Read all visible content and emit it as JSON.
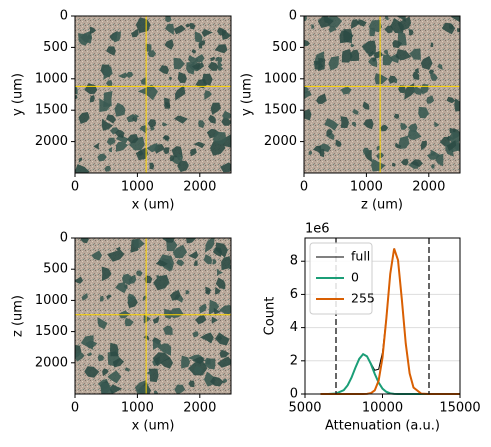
{
  "chart_data": [
    {
      "type": "image",
      "xlabel": "x (um)",
      "ylabel": "y (um)",
      "xlim": [
        0,
        2500
      ],
      "ylim": [
        2500,
        0
      ],
      "xticks": [
        0,
        1000,
        2000
      ],
      "yticks": [
        0,
        500,
        1000,
        1500,
        2000
      ],
      "crosshair": {
        "x": 1140,
        "y": 1120
      },
      "crosshair_color": "#ffd700"
    },
    {
      "type": "image",
      "xlabel": "z (um)",
      "ylabel": "y (um)",
      "xlim": [
        0,
        2500
      ],
      "ylim": [
        2500,
        0
      ],
      "xticks": [
        0,
        1000,
        2000
      ],
      "yticks": [
        0,
        500,
        1000,
        1500,
        2000
      ],
      "crosshair": {
        "x": 1220,
        "y": 1120
      },
      "crosshair_color": "#ffd700"
    },
    {
      "type": "image",
      "xlabel": "x (um)",
      "ylabel": "z (um)",
      "xlim": [
        0,
        2500
      ],
      "ylim": [
        2500,
        0
      ],
      "xticks": [
        0,
        1000,
        2000
      ],
      "yticks": [
        0,
        500,
        1000,
        1500,
        2000
      ],
      "crosshair": {
        "x": 1140,
        "y": 1230
      },
      "crosshair_color": "#ffd700"
    },
    {
      "type": "line",
      "xlabel": "Attenuation (a.u.)",
      "ylabel": "Count",
      "y_scale_label": "1e6",
      "x": [
        6000,
        6500,
        7000,
        7500,
        7750,
        8000,
        8250,
        8500,
        8750,
        9000,
        9250,
        9500,
        9750,
        10000,
        10250,
        10500,
        10750,
        11000,
        11250,
        11500,
        11750,
        12000,
        12500,
        13000,
        14000,
        15000
      ],
      "series": [
        {
          "name": "full",
          "color": "#000000",
          "width": 1,
          "values": [
            0,
            0,
            0.03,
            0.23,
            0.52,
            0.99,
            1.58,
            2.12,
            2.4,
            2.28,
            1.86,
            1.43,
            1.49,
            2.51,
            4.7,
            7.28,
            8.77,
            8.07,
            5.67,
            3.04,
            1.24,
            0.39,
            0.02,
            0,
            0,
            0
          ]
        },
        {
          "name": "0",
          "color": "#1b9e77",
          "width": 2,
          "values": [
            0,
            0,
            0.03,
            0.23,
            0.52,
            0.99,
            1.58,
            2.12,
            2.4,
            2.27,
            1.81,
            1.21,
            0.69,
            0.32,
            0.13,
            0.04,
            0.01,
            0,
            0,
            0,
            0,
            0,
            0,
            0,
            0,
            0
          ]
        },
        {
          "name": "255",
          "color": "#d95f02",
          "width": 2,
          "values": [
            0,
            0,
            0,
            0,
            0,
            0,
            0,
            0,
            0,
            0.01,
            0.05,
            0.22,
            0.8,
            2.19,
            4.57,
            7.24,
            8.76,
            8.07,
            5.67,
            3.04,
            1.24,
            0.39,
            0.02,
            0,
            0,
            0
          ]
        }
      ],
      "xlim": [
        5000,
        15000
      ],
      "ylim": [
        0,
        9.4
      ],
      "xticks": [
        5000,
        10000,
        15000
      ],
      "yticks": [
        0,
        2,
        4,
        6,
        8
      ],
      "grid": true,
      "legend": "upper left",
      "vlines": [
        7000,
        13000
      ],
      "vline_color": "#333333"
    }
  ]
}
